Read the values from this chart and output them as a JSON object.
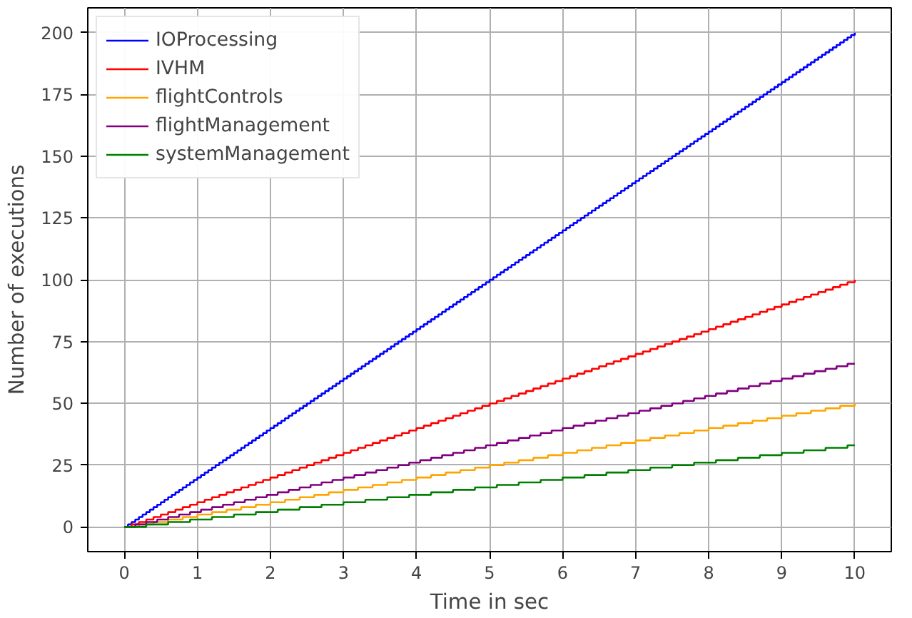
{
  "chart_data": {
    "type": "step",
    "xlabel": "Time in sec",
    "ylabel": "Number of executions",
    "xlim": [
      -0.5,
      10.5
    ],
    "ylim": [
      -10,
      210
    ],
    "xticks": [
      0,
      1,
      2,
      3,
      4,
      5,
      6,
      7,
      8,
      9,
      10
    ],
    "yticks": [
      0,
      25,
      50,
      75,
      100,
      125,
      150,
      175,
      200
    ],
    "grid": true,
    "legend": "top left",
    "marker": "none",
    "line_style": "solid",
    "series": [
      {
        "name": "IOProcessing",
        "color": "#0000ff",
        "x": [
          0,
          0.05,
          0.1,
          0.15,
          0.2,
          0.25,
          0.3,
          0.35,
          0.4,
          0.45,
          0.5,
          0.55,
          0.6,
          0.65,
          0.7,
          0.75,
          0.8,
          0.85,
          0.9,
          0.95,
          1,
          1.05,
          1.1,
          1.15,
          1.2,
          1.25,
          1.3,
          1.35,
          1.4,
          1.45,
          1.5,
          1.55,
          1.6,
          1.65,
          1.7,
          1.75,
          1.8,
          1.85,
          1.9,
          1.95,
          2,
          2.05,
          2.1,
          2.15,
          2.2,
          2.25,
          2.3,
          2.35,
          2.4,
          2.45,
          2.5,
          2.55,
          2.6,
          2.65,
          2.7,
          2.75,
          2.8,
          2.85,
          2.9,
          2.95,
          3,
          3.05,
          3.1,
          3.15,
          3.2,
          3.25,
          3.3,
          3.35,
          3.4,
          3.45,
          3.5,
          3.55,
          3.6,
          3.65,
          3.7,
          3.75,
          3.8,
          3.85,
          3.9,
          3.95,
          4,
          4.05,
          4.1,
          4.15,
          4.2,
          4.25,
          4.3,
          4.35,
          4.4,
          4.45,
          4.5,
          4.55,
          4.6,
          4.65,
          4.7,
          4.75,
          4.8,
          4.85,
          4.9,
          4.95,
          5,
          5.05,
          5.1,
          5.15,
          5.2,
          5.25,
          5.3,
          5.35,
          5.4,
          5.45,
          5.5,
          5.55,
          5.6,
          5.65,
          5.7,
          5.75,
          5.8,
          5.85,
          5.9,
          5.95,
          6,
          6.05,
          6.1,
          6.15,
          6.2,
          6.25,
          6.3,
          6.35,
          6.4,
          6.45,
          6.5,
          6.55,
          6.6,
          6.65,
          6.7,
          6.75,
          6.8,
          6.85,
          6.9,
          6.95,
          7,
          7.05,
          7.1,
          7.15,
          7.2,
          7.25,
          7.3,
          7.35,
          7.4,
          7.45,
          7.5,
          7.55,
          7.6,
          7.65,
          7.7,
          7.75,
          7.8,
          7.85,
          7.9,
          7.95,
          8,
          8.05,
          8.1,
          8.15,
          8.2,
          8.25,
          8.3,
          8.35,
          8.4,
          8.45,
          8.5,
          8.55,
          8.6,
          8.65,
          8.7,
          8.75,
          8.8,
          8.85,
          8.9,
          8.95,
          9,
          9.05,
          9.1,
          9.15,
          9.2,
          9.25,
          9.3,
          9.35,
          9.4,
          9.45,
          9.5,
          9.55,
          9.6,
          9.65,
          9.7,
          9.75,
          9.8,
          9.85,
          9.9,
          9.95,
          10
        ],
        "values": [
          0,
          1,
          2,
          3,
          4,
          5,
          6,
          7,
          8,
          9,
          10,
          11,
          12,
          13,
          14,
          15,
          16,
          17,
          18,
          19,
          20,
          21,
          22,
          23,
          24,
          25,
          26,
          27,
          28,
          29,
          30,
          31,
          32,
          33,
          34,
          35,
          36,
          37,
          38,
          39,
          40,
          41,
          42,
          43,
          44,
          45,
          46,
          47,
          48,
          49,
          50,
          51,
          52,
          53,
          54,
          55,
          56,
          57,
          58,
          59,
          60,
          61,
          62,
          63,
          64,
          65,
          66,
          67,
          68,
          69,
          70,
          71,
          72,
          73,
          74,
          75,
          76,
          77,
          78,
          79,
          80,
          81,
          82,
          83,
          84,
          85,
          86,
          87,
          88,
          89,
          90,
          91,
          92,
          93,
          94,
          95,
          96,
          97,
          98,
          99,
          100,
          101,
          102,
          103,
          104,
          105,
          106,
          107,
          108,
          109,
          110,
          111,
          112,
          113,
          114,
          115,
          116,
          117,
          118,
          119,
          120,
          121,
          122,
          123,
          124,
          125,
          126,
          127,
          128,
          129,
          130,
          131,
          132,
          133,
          134,
          135,
          136,
          137,
          138,
          139,
          140,
          141,
          142,
          143,
          144,
          145,
          146,
          147,
          148,
          149,
          150,
          151,
          152,
          153,
          154,
          155,
          156,
          157,
          158,
          159,
          160,
          161,
          162,
          163,
          164,
          165,
          166,
          167,
          168,
          169,
          170,
          171,
          172,
          173,
          174,
          175,
          176,
          177,
          178,
          179,
          180,
          181,
          182,
          183,
          184,
          185,
          186,
          187,
          188,
          189,
          190,
          191,
          192,
          193,
          194,
          195,
          196,
          197,
          198,
          199,
          200
        ]
      },
      {
        "name": "IVHM",
        "color": "#ff0000",
        "x": [
          0,
          0.1,
          0.2,
          0.3,
          0.4,
          0.5,
          0.6,
          0.7,
          0.8,
          0.9,
          1,
          1.1,
          1.2,
          1.3,
          1.4,
          1.5,
          1.6,
          1.7,
          1.8,
          1.9,
          2,
          2.1,
          2.2,
          2.3,
          2.4,
          2.5,
          2.6,
          2.7,
          2.8,
          2.9,
          3,
          3.1,
          3.2,
          3.3,
          3.4,
          3.5,
          3.6,
          3.7,
          3.8,
          3.9,
          4,
          4.1,
          4.2,
          4.3,
          4.4,
          4.5,
          4.6,
          4.7,
          4.8,
          4.9,
          5,
          5.1,
          5.2,
          5.3,
          5.4,
          5.5,
          5.6,
          5.7,
          5.8,
          5.9,
          6,
          6.1,
          6.2,
          6.3,
          6.4,
          6.5,
          6.6,
          6.7,
          6.8,
          6.9,
          7,
          7.1,
          7.2,
          7.3,
          7.4,
          7.5,
          7.6,
          7.7,
          7.8,
          7.9,
          8,
          8.1,
          8.2,
          8.3,
          8.4,
          8.5,
          8.6,
          8.7,
          8.8,
          8.9,
          9,
          9.1,
          9.2,
          9.3,
          9.4,
          9.5,
          9.6,
          9.7,
          9.8,
          9.9,
          10
        ],
        "values": [
          0,
          1,
          2,
          3,
          4,
          5,
          6,
          7,
          8,
          9,
          10,
          11,
          12,
          13,
          14,
          15,
          16,
          17,
          18,
          19,
          20,
          21,
          22,
          23,
          24,
          25,
          26,
          27,
          28,
          29,
          30,
          31,
          32,
          33,
          34,
          35,
          36,
          37,
          38,
          39,
          40,
          41,
          42,
          43,
          44,
          45,
          46,
          47,
          48,
          49,
          50,
          51,
          52,
          53,
          54,
          55,
          56,
          57,
          58,
          59,
          60,
          61,
          62,
          63,
          64,
          65,
          66,
          67,
          68,
          69,
          70,
          71,
          72,
          73,
          74,
          75,
          76,
          77,
          78,
          79,
          80,
          81,
          82,
          83,
          84,
          85,
          86,
          87,
          88,
          89,
          90,
          91,
          92,
          93,
          94,
          95,
          96,
          97,
          98,
          99,
          100
        ]
      },
      {
        "name": "flightControls",
        "color": "#ffa500",
        "x": [
          0,
          0.2,
          0.4,
          0.6,
          0.8,
          1,
          1.2,
          1.4,
          1.6,
          1.8,
          2,
          2.2,
          2.4,
          2.6,
          2.8,
          3,
          3.2,
          3.4,
          3.6,
          3.8,
          4,
          4.2,
          4.4,
          4.6,
          4.8,
          5,
          5.2,
          5.4,
          5.6,
          5.8,
          6,
          6.2,
          6.4,
          6.6,
          6.8,
          7,
          7.2,
          7.4,
          7.6,
          7.8,
          8,
          8.2,
          8.4,
          8.6,
          8.8,
          9,
          9.2,
          9.4,
          9.6,
          9.8,
          10
        ],
        "values": [
          0,
          1,
          2,
          3,
          4,
          5,
          6,
          7,
          8,
          9,
          10,
          11,
          12,
          13,
          14,
          15,
          16,
          17,
          18,
          19,
          20,
          21,
          22,
          23,
          24,
          25,
          26,
          27,
          28,
          29,
          30,
          31,
          32,
          33,
          34,
          35,
          36,
          37,
          38,
          39,
          40,
          41,
          42,
          43,
          44,
          45,
          46,
          47,
          48,
          49,
          50
        ]
      },
      {
        "name": "flightManagement",
        "color": "#800080",
        "x": [
          0,
          0.15,
          0.3,
          0.45,
          0.6,
          0.75,
          0.9,
          1.05,
          1.2,
          1.35,
          1.5,
          1.65,
          1.8,
          1.95,
          2.1,
          2.25,
          2.4,
          2.55,
          2.7,
          2.85,
          3,
          3.15,
          3.3,
          3.45,
          3.6,
          3.75,
          3.9,
          4.05,
          4.2,
          4.35,
          4.5,
          4.65,
          4.8,
          4.95,
          5.1,
          5.25,
          5.4,
          5.55,
          5.7,
          5.85,
          6,
          6.15,
          6.3,
          6.45,
          6.6,
          6.75,
          6.9,
          7.05,
          7.2,
          7.35,
          7.5,
          7.65,
          7.8,
          7.95,
          8.1,
          8.25,
          8.4,
          8.55,
          8.7,
          8.85,
          9,
          9.15,
          9.3,
          9.45,
          9.6,
          9.75,
          9.9,
          10
        ],
        "values": [
          0,
          1,
          2,
          3,
          4,
          5,
          6,
          7,
          8,
          9,
          10,
          11,
          12,
          13,
          14,
          15,
          16,
          17,
          18,
          19,
          20,
          21,
          22,
          23,
          24,
          25,
          26,
          27,
          28,
          29,
          30,
          31,
          32,
          33,
          34,
          35,
          36,
          37,
          38,
          39,
          40,
          41,
          42,
          43,
          44,
          45,
          46,
          47,
          48,
          49,
          50,
          51,
          52,
          53,
          54,
          55,
          56,
          57,
          58,
          59,
          60,
          61,
          62,
          63,
          64,
          65,
          66,
          66
        ]
      },
      {
        "name": "systemManagement",
        "color": "#008000",
        "x": [
          0,
          0.3,
          0.6,
          0.9,
          1.2,
          1.5,
          1.8,
          2.1,
          2.4,
          2.7,
          3,
          3.3,
          3.6,
          3.9,
          4.2,
          4.5,
          4.8,
          5.1,
          5.4,
          5.7,
          6,
          6.3,
          6.6,
          6.9,
          7.2,
          7.5,
          7.8,
          8.1,
          8.4,
          8.7,
          9,
          9.3,
          9.6,
          9.9,
          10
        ],
        "values": [
          0,
          1,
          2,
          3,
          4,
          5,
          6,
          7,
          8,
          9,
          10,
          11,
          12,
          13,
          14,
          15,
          16,
          17,
          18,
          19,
          20,
          21,
          22,
          23,
          24,
          25,
          26,
          27,
          28,
          29,
          30,
          31,
          32,
          33,
          33
        ]
      }
    ]
  }
}
